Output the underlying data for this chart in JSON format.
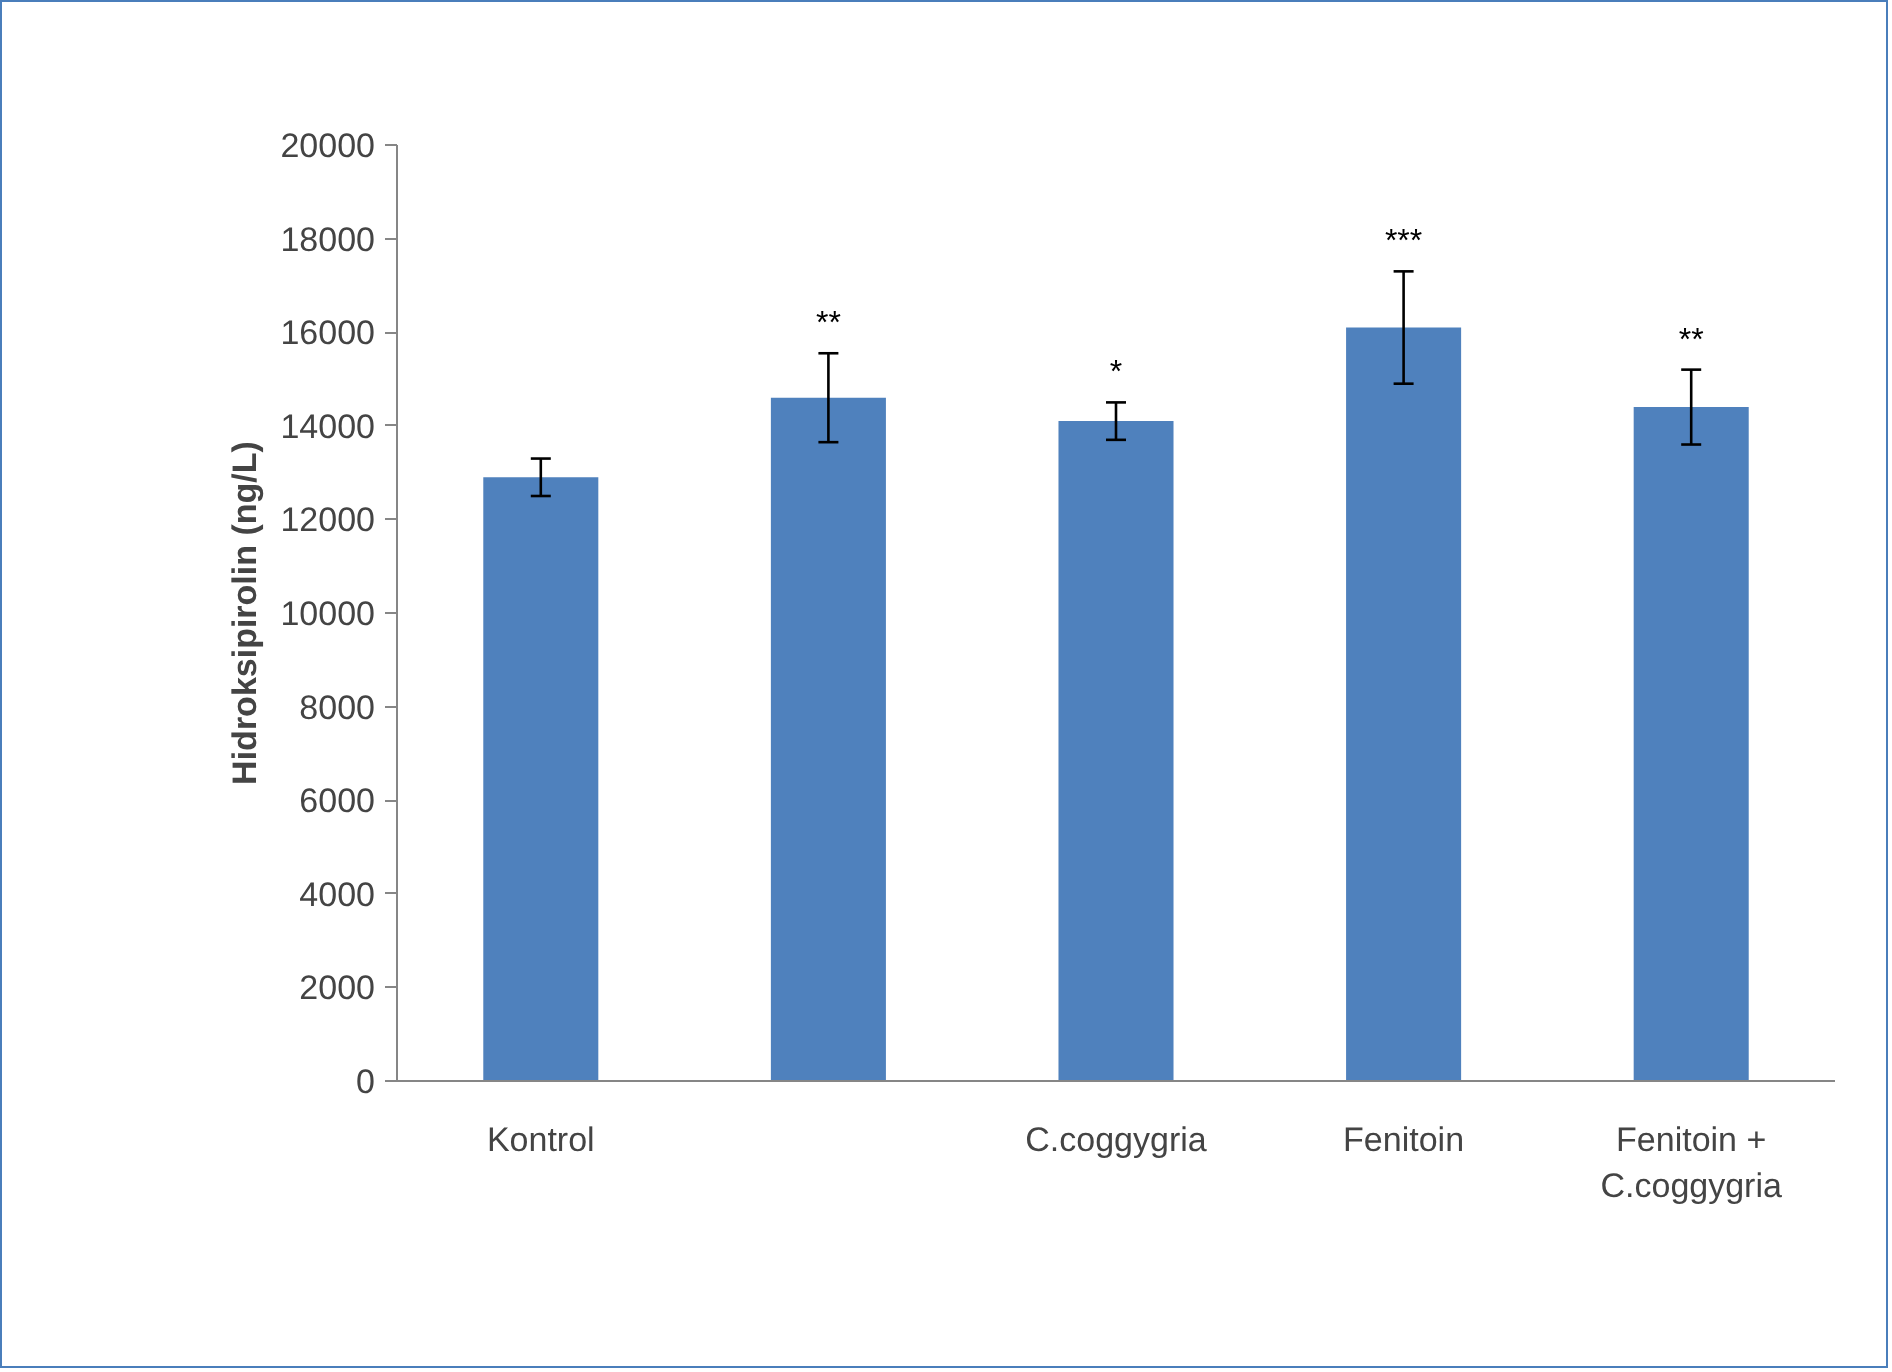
{
  "chart_data": {
    "type": "bar",
    "ylabel": "Hidroksipirolin (ng/L)",
    "categories": [
      "Kontrol",
      null,
      "C.coggygria",
      "Fenitoin",
      "Fenitoin + C.coggygria"
    ],
    "values": [
      12900,
      14600,
      14100,
      16100,
      14400
    ],
    "errors": [
      400,
      950,
      400,
      1200,
      800
    ],
    "value_labels": [
      null,
      "**",
      "*",
      "***",
      "**"
    ],
    "color": "#4f81bd",
    "ylim": [
      0,
      20000
    ],
    "yticks": [
      0,
      2000,
      4000,
      6000,
      8000,
      10000,
      12000,
      14000,
      16000,
      18000,
      20000
    ],
    "grid": false
  }
}
